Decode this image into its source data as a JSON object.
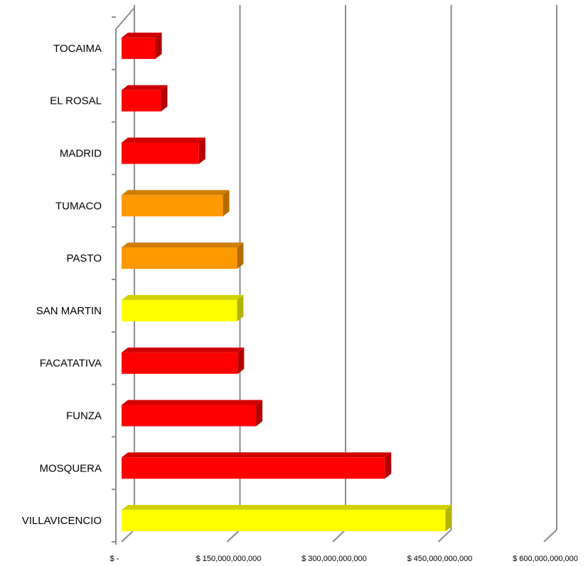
{
  "chart_data": {
    "type": "bar",
    "orientation": "horizontal",
    "three_d": true,
    "title": "",
    "xlabel": "",
    "ylabel": "",
    "categories": [
      "TOCAIMA",
      "EL ROSAL",
      "MADRID",
      "TUMACO",
      "PASTO",
      "SAN MARTIN",
      "FACATATIVA",
      "FUNZA",
      "MOSQUERA",
      "VILLAVICENCIO"
    ],
    "values": [
      48000000000,
      56000000000,
      110000000000,
      144000000000,
      164000000000,
      164000000000,
      165000000000,
      191000000000,
      374000000000,
      460000000000
    ],
    "bar_colors": [
      "#ff0000",
      "#ff0000",
      "#ff0000",
      "#ff9900",
      "#ff9900",
      "#ffff00",
      "#ff0000",
      "#ff0000",
      "#ff0000",
      "#ffff00"
    ],
    "xlim": [
      0,
      600000000000
    ],
    "xticks": [
      0,
      150000000000,
      300000000000,
      450000000000,
      600000000000
    ],
    "xtick_labels": [
      "$ -",
      "$ 150,000,000,000",
      "$ 300,000,000,000",
      "$ 450,000,000,000",
      "$ 600,000,000,000"
    ],
    "grid": true,
    "legend": "none"
  }
}
